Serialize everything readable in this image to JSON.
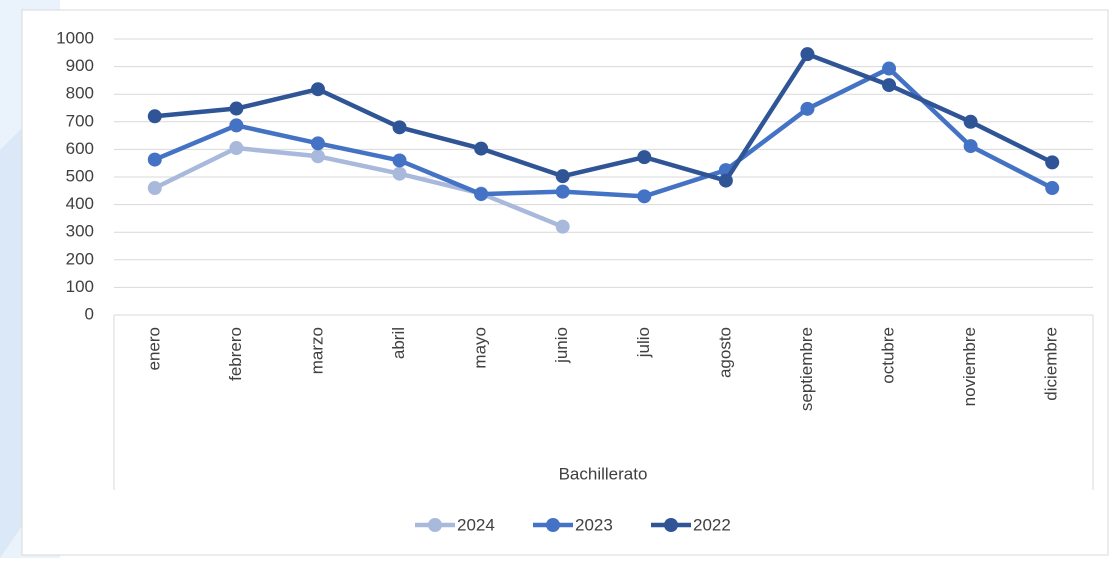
{
  "chart_data": {
    "type": "line",
    "categories": [
      "enero",
      "febrero",
      "marzo",
      "abril",
      "mayo",
      "junio",
      "julio",
      "agosto",
      "septiembre",
      "octubre",
      "noviembre",
      "diciembre"
    ],
    "group_label": "Bachillerato",
    "series": [
      {
        "name": "2024",
        "color": "#a9b9dc",
        "values": [
          460,
          605,
          575,
          512,
          440,
          320,
          null,
          null,
          null,
          null,
          null,
          null
        ]
      },
      {
        "name": "2023",
        "color": "#4472c4",
        "values": [
          563,
          687,
          622,
          560,
          438,
          447,
          430,
          525,
          747,
          893,
          612,
          460
        ]
      },
      {
        "name": "2022",
        "color": "#2f5597",
        "values": [
          720,
          748,
          818,
          680,
          603,
          503,
          572,
          487,
          945,
          833,
          700,
          553
        ]
      }
    ],
    "ylim": [
      0,
      1000
    ],
    "yticks": [
      0,
      100,
      200,
      300,
      400,
      500,
      600,
      700,
      800,
      900,
      1000
    ],
    "grid": true,
    "legend": "bottom"
  }
}
